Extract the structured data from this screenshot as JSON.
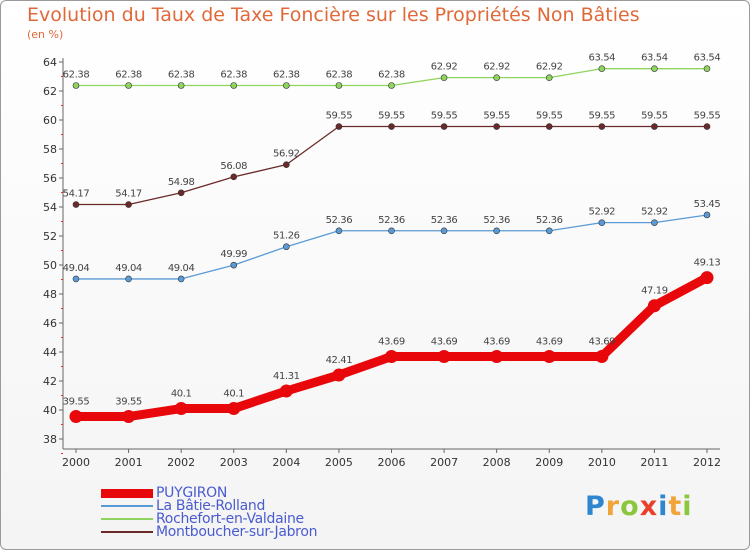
{
  "chart_data": {
    "type": "line",
    "title": "Evolution du Taux de Taxe Foncière sur les Propriétés Non Bâties",
    "ylabel": "(en %)",
    "xlabel": "",
    "x": [
      "2000",
      "2001",
      "2002",
      "2003",
      "2004",
      "2005",
      "2006",
      "2007",
      "2008",
      "2009",
      "2010",
      "2011",
      "2012"
    ],
    "ylim": [
      38,
      64
    ],
    "yticks": [
      "38",
      "40",
      "42",
      "44",
      "46",
      "48",
      "50",
      "52",
      "54",
      "56",
      "58",
      "60",
      "62",
      "64"
    ],
    "grid": false,
    "legend_position": "bottom-left",
    "series": [
      {
        "name": "PUYGIRON",
        "color": "#e8080c",
        "values": [
          39.55,
          39.55,
          40.1,
          40.1,
          41.31,
          42.41,
          43.69,
          43.69,
          43.69,
          43.69,
          43.69,
          47.19,
          49.13
        ],
        "labels": [
          "39.55",
          "39.55",
          "40.1",
          "40.1",
          "41.31",
          "42.41",
          "43.69",
          "43.69",
          "43.69",
          "43.69",
          "43.69",
          "47.19",
          "49.13"
        ]
      },
      {
        "name": "La Bâtie-Rolland",
        "color": "#5a9ad6",
        "values": [
          49.04,
          49.04,
          49.04,
          49.99,
          51.26,
          52.36,
          52.36,
          52.36,
          52.36,
          52.36,
          52.92,
          52.92,
          53.45
        ],
        "labels": [
          "49.04",
          "49.04",
          "49.04",
          "49.99",
          "51.26",
          "52.36",
          "52.36",
          "52.36",
          "52.36",
          "52.36",
          "52.92",
          "52.92",
          "53.45"
        ]
      },
      {
        "name": "Rochefort-en-Valdaine",
        "color": "#8fd45e",
        "values": [
          62.38,
          62.38,
          62.38,
          62.38,
          62.38,
          62.38,
          62.38,
          62.92,
          62.92,
          62.92,
          63.54,
          63.54,
          63.54
        ],
        "labels": [
          "62.38",
          "62.38",
          "62.38",
          "62.38",
          "62.38",
          "62.38",
          "62.38",
          "62.92",
          "62.92",
          "62.92",
          "63.54",
          "63.54",
          "63.54"
        ]
      },
      {
        "name": "Montboucher-sur-Jabron",
        "color": "#6b2a2a",
        "values": [
          54.17,
          54.17,
          54.98,
          56.08,
          56.92,
          59.55,
          59.55,
          59.55,
          59.55,
          59.55,
          59.55,
          59.55,
          59.55
        ],
        "labels": [
          "54.17",
          "54.17",
          "54.98",
          "56.08",
          "56.92",
          "59.55",
          "59.55",
          "59.55",
          "59.55",
          "59.55",
          "59.55",
          "59.55",
          "59.55"
        ]
      }
    ]
  },
  "brand": {
    "letters": [
      {
        "ch": "P",
        "color": "#2e86d0"
      },
      {
        "ch": "r",
        "color": "#f0a43a"
      },
      {
        "ch": "o",
        "color": "#8cc63f"
      },
      {
        "ch": "x",
        "color": "#e8402a"
      },
      {
        "ch": "i",
        "color": "#2e86d0"
      },
      {
        "ch": "t",
        "color": "#f0a43a"
      },
      {
        "ch": "i",
        "color": "#8cc63f"
      }
    ]
  }
}
